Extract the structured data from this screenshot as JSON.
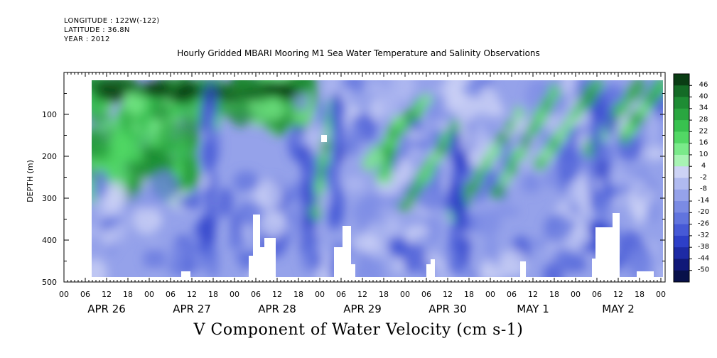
{
  "header": {
    "longitude": "LONGITUDE : 122W(-122)",
    "latitude": "LATITUDE : 36.8N",
    "year": "YEAR : 2012"
  },
  "chart_data": {
    "type": "heatmap",
    "title": "Hourly Gridded MBARI Mooring M1 Sea Water Temperature and Salinity Observations",
    "caption": "V Component of Water Velocity (cm s-1)",
    "ylabel": "DEPTH (m)",
    "ylim": [
      500,
      0
    ],
    "y_ticks": [
      100,
      200,
      300,
      400,
      500
    ],
    "y_tick_labels": [
      "100",
      "200",
      "300",
      "400",
      "500"
    ],
    "x_hour_labels": [
      "00",
      "06",
      "12",
      "18",
      "00",
      "06",
      "12",
      "18",
      "00",
      "06",
      "12",
      "18",
      "00",
      "06",
      "12",
      "18",
      "00",
      "06",
      "12",
      "18",
      "00",
      "06",
      "12",
      "18",
      "00",
      "06",
      "12",
      "18",
      "00"
    ],
    "x_day_labels": [
      "APR 26",
      "APR 27",
      "APR 28",
      "APR 29",
      "APR 30",
      "MAY  1",
      "MAY  2"
    ],
    "colorbar": {
      "labels": [
        "46",
        "40",
        "34",
        "28",
        "22",
        "16",
        "10",
        "4",
        "-2",
        "-8",
        "-14",
        "-20",
        "-26",
        "-32",
        "-38",
        "-44",
        "-50"
      ],
      "colors": [
        "#0a3d14",
        "#146b26",
        "#1e8c34",
        "#2aa640",
        "#38c24f",
        "#52d865",
        "#7aea8a",
        "#a8f3b4",
        "#cdd3f5",
        "#b0baf0",
        "#95a2ea",
        "#7b8be4",
        "#6174de",
        "#4659d6",
        "#2d3fc8",
        "#1d2aa5",
        "#101878",
        "#08104a"
      ]
    },
    "data_coverage": {
      "start": "APR 26 08:00",
      "end": "MAY 2 24:00",
      "depth_top_m": 20,
      "depth_bottom_m": 490
    }
  }
}
